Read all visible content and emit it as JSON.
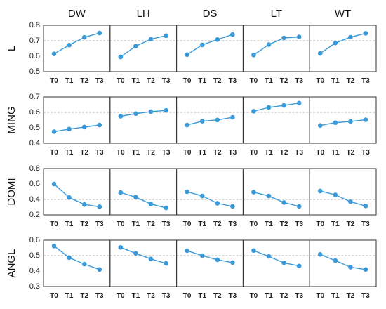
{
  "chart_data": {
    "type": "line",
    "layout": "small-multiples grid",
    "columns": [
      "DW",
      "LH",
      "DS",
      "LT",
      "WT"
    ],
    "x": [
      "T0",
      "T1",
      "T2",
      "T3"
    ],
    "color": "#3a9ad9",
    "gridline_color": "#b5b5b5",
    "rows": [
      {
        "label": "L",
        "ylim": [
          0.5,
          0.8
        ],
        "yticks": [
          "0.5",
          "0.6",
          "0.7",
          "0.8"
        ],
        "reference_line": 0.7,
        "series": [
          {
            "values": [
              0.615,
              0.672,
              0.722,
              0.75
            ]
          },
          {
            "values": [
              0.595,
              0.665,
              0.71,
              0.733
            ]
          },
          {
            "values": [
              0.61,
              0.673,
              0.708,
              0.74
            ]
          },
          {
            "values": [
              0.608,
              0.675,
              0.718,
              0.725
            ]
          },
          {
            "values": [
              0.618,
              0.685,
              0.723,
              0.748
            ]
          }
        ]
      },
      {
        "label": "MING",
        "ylim": [
          0.4,
          0.7
        ],
        "yticks": [
          "0.4",
          "0.5",
          "0.6",
          "0.7"
        ],
        "reference_line": 0.6,
        "series": [
          {
            "values": [
              0.475,
              0.492,
              0.505,
              0.518
            ]
          },
          {
            "values": [
              0.575,
              0.592,
              0.605,
              0.613
            ]
          },
          {
            "values": [
              0.518,
              0.543,
              0.551,
              0.568
            ]
          },
          {
            "values": [
              0.607,
              0.632,
              0.645,
              0.66
            ]
          },
          {
            "values": [
              0.515,
              0.533,
              0.541,
              0.552
            ]
          }
        ]
      },
      {
        "label": "DOMI",
        "ylim": [
          0.2,
          0.8
        ],
        "yticks": [
          "0.2",
          "0.4",
          "0.6",
          "0.8"
        ],
        "reference_line": 0.4,
        "series": [
          {
            "values": [
              0.6,
              0.425,
              0.335,
              0.305
            ]
          },
          {
            "values": [
              0.49,
              0.43,
              0.34,
              0.29
            ]
          },
          {
            "values": [
              0.5,
              0.445,
              0.35,
              0.31
            ]
          },
          {
            "values": [
              0.495,
              0.445,
              0.36,
              0.31
            ]
          },
          {
            "values": [
              0.51,
              0.46,
              0.37,
              0.315
            ]
          }
        ]
      },
      {
        "label": "ANGL",
        "ylim": [
          0.3,
          0.6
        ],
        "yticks": [
          "0.3",
          "0.4",
          "0.5",
          "0.6"
        ],
        "reference_line": 0.5,
        "series": [
          {
            "values": [
              0.562,
              0.487,
              0.445,
              0.41
            ]
          },
          {
            "values": [
              0.553,
              0.515,
              0.478,
              0.45
            ]
          },
          {
            "values": [
              0.532,
              0.5,
              0.473,
              0.455
            ]
          },
          {
            "values": [
              0.533,
              0.495,
              0.453,
              0.433
            ]
          },
          {
            "values": [
              0.508,
              0.468,
              0.425,
              0.41
            ]
          }
        ]
      }
    ]
  }
}
